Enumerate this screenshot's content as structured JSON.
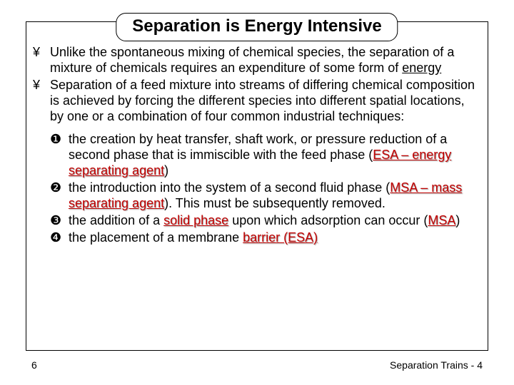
{
  "title": "Separation is Energy Intensive",
  "bullets": {
    "marker": "¥",
    "items": [
      {
        "pre": "Unlike the spontaneous mixing of chemical species, the separation of a mixture of chemicals requires an expenditure of some form of ",
        "u": "energy",
        "post": ""
      },
      {
        "pre": "Separation of a feed mixture into streams of differing chemical composition is achieved by forcing the different species into different spatial locations, by one or a combination of four common industrial techniques:",
        "u": "",
        "post": ""
      }
    ]
  },
  "subitems": [
    {
      "marker": "❶",
      "pre": "the creation by heat transfer, shaft work, or pressure reduction of a second phase that is immiscible with the feed phase (",
      "term": "ESA – energy separating agent",
      "post": ")"
    },
    {
      "marker": "❷",
      "pre": "the introduction into the system of a second fluid phase (",
      "term": "MSA – mass separating agent",
      "post": "). This must be subsequently removed."
    },
    {
      "marker": "❸",
      "pre": "the addition of a ",
      "term": "solid phase",
      "post": " upon which adsorption can occur (",
      "term2": "MSA",
      "post2": ")"
    },
    {
      "marker": "❹",
      "pre": "the placement of a membrane ",
      "term": "barrier (ESA)",
      "post": ""
    }
  ],
  "page_number": "6",
  "footer": "Separation Trains - 4",
  "colors": {
    "term": "#c00000",
    "border": "#000000",
    "background": "#ffffff"
  },
  "fonts": {
    "body_family": "Comic Sans MS",
    "title_size": 24,
    "body_size": 18,
    "footer_size": 14
  }
}
